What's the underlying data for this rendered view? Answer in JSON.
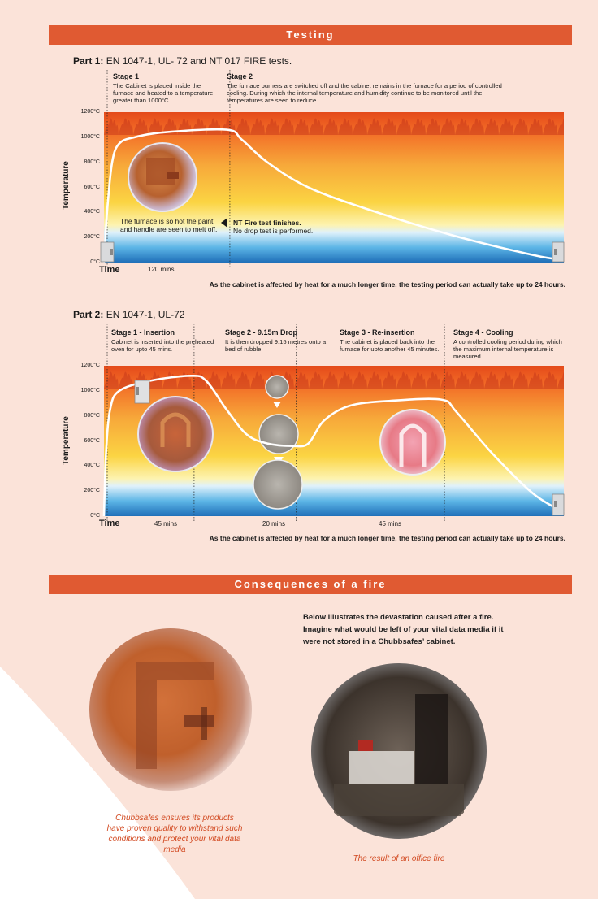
{
  "colors": {
    "banner": "#e05a32",
    "swoosh": "#fbe3d9",
    "caption": "#d24a22",
    "curve": "#ffffff"
  },
  "section1": {
    "banner": "Testing",
    "part1": {
      "title_bold": "Part 1:",
      "title_rest": " EN 1047-1, UL- 72 and NT 017 FIRE tests.",
      "stages": [
        {
          "title": "Stage 1",
          "text": "The Cabinet is placed inside the furnace and heated to a temperature greater than 1000°C."
        },
        {
          "title": "Stage 2",
          "text": "The furnace burners are switched off and the cabinet remains in the furnace for a period of controlled cooling. During which the internal temperature and humidity continue to be monitored until the temperatures are seen to reduce."
        }
      ],
      "chart_data": {
        "type": "line",
        "title": "",
        "xlabel": "Time",
        "ylabel": "Temperature",
        "y_ticks": [
          "1200°C",
          "1000°C",
          "800°C",
          "600°C",
          "400°C",
          "200°C",
          "0°C"
        ],
        "ylim": [
          0,
          1200
        ],
        "x_duration_labels": [
          "120 mins"
        ],
        "series": [
          {
            "points": [
              [
                0,
                0
              ],
              [
                3,
                400
              ],
              [
                8,
                800
              ],
              [
                15,
                950
              ],
              [
                30,
                1000
              ],
              [
                60,
                1040
              ],
              [
                120,
                1060
              ],
              [
                135,
                980
              ],
              [
                160,
                800
              ],
              [
                200,
                600
              ],
              [
                260,
                420
              ],
              [
                340,
                220
              ],
              [
                420,
                60
              ],
              [
                450,
                20
              ]
            ]
          }
        ],
        "x_max": 450,
        "stage_divider_x": [
          0,
          120
        ],
        "annotations": {
          "furnace_note": "The furnace is so hot the paint and handle are seen to melt off.",
          "nt_bold": "NT Fire test finishes.",
          "nt_rest": "No drop test is performed."
        }
      },
      "footnote": "As the cabinet is affected by heat for a much longer time, the testing period can actually take up to 24 hours."
    },
    "part2": {
      "title_bold": "Part 2:",
      "title_rest": " EN 1047-1, UL-72",
      "stages": [
        {
          "title": "Stage 1 - Insertion",
          "text": "Cabinet is inserted into the preheated oven for upto 45 mins."
        },
        {
          "title": "Stage 2 - 9.15m Drop",
          "text": "It is then dropped 9.15 metres onto a bed of rubble."
        },
        {
          "title": "Stage 3 - Re-insertion",
          "text": "The cabinet is placed back into the furnace for upto another 45 minutes."
        },
        {
          "title": "Stage 4 - Cooling",
          "text": "A controlled cooling period during which the maximum internal temperature is measured."
        }
      ],
      "chart_data": {
        "type": "line",
        "title": "",
        "xlabel": "Time",
        "ylabel": "Temperature",
        "y_ticks": [
          "1200°C",
          "1000°C",
          "800°C",
          "600°C",
          "400°C",
          "200°C",
          "0°C"
        ],
        "ylim": [
          0,
          1200
        ],
        "x_duration_labels": [
          "45 mins",
          "20 mins",
          "45 mins"
        ],
        "series": [
          {
            "points": [
              [
                0,
                0
              ],
              [
                2,
                500
              ],
              [
                6,
                850
              ],
              [
                15,
                1000
              ],
              [
                45,
                1080
              ],
              [
                85,
                1120
              ],
              [
                100,
                1080
              ],
              [
                120,
                850
              ],
              [
                140,
                650
              ],
              [
                160,
                580
              ],
              [
                185,
                560
              ],
              [
                200,
                580
              ],
              [
                215,
                760
              ],
              [
                240,
                880
              ],
              [
                280,
                920
              ],
              [
                330,
                930
              ],
              [
                345,
                830
              ],
              [
                380,
                500
              ],
              [
                420,
                180
              ],
              [
                450,
                30
              ]
            ]
          }
        ],
        "x_max": 450,
        "stage_divider_x": [
          0,
          85,
          185,
          330
        ]
      },
      "footnote": "As the cabinet is affected by heat for a much longer time, the testing period can actually take up to 24 hours."
    }
  },
  "section2": {
    "banner": "Consequences of a fire",
    "body": "Below illustrates the devastation caused after a fire. Imagine what would be left of your vital data media if it were not stored in a Chubbsafes’ cabinet.",
    "caption_left": "Chubbsafes ensures its products have proven quality to withstand such conditions and protect your vital data media",
    "caption_right": "The result of an office fire"
  }
}
